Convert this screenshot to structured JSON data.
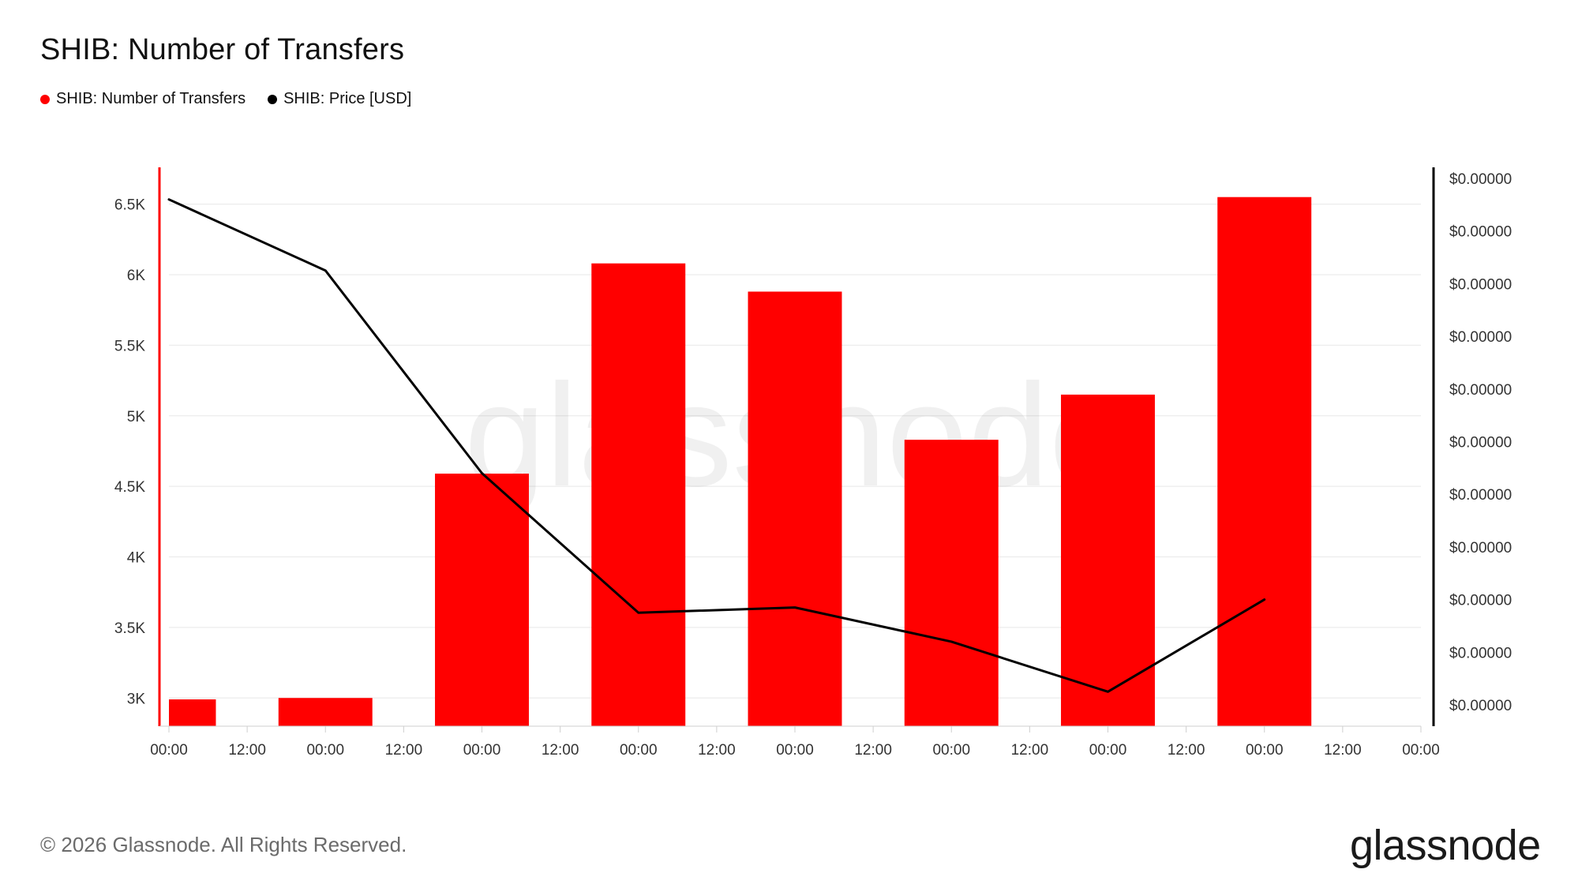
{
  "header": {
    "title": "SHIB: Number of Transfers"
  },
  "legend": {
    "items": [
      {
        "label": "SHIB: Number of Transfers",
        "color": "#ff0000",
        "icon": "circle-dot-icon"
      },
      {
        "label": "SHIB: Price [USD]",
        "color": "#000000",
        "icon": "circle-dot-icon"
      }
    ]
  },
  "watermark": "glassnode",
  "footer": {
    "copyright": "© 2026 Glassnode. All Rights Reserved.",
    "logo": "glassnode"
  },
  "chart_data": {
    "type": "bar",
    "title": "SHIB: Number of Transfers",
    "x_tick_labels": [
      "00:00",
      "12:00",
      "00:00",
      "12:00",
      "00:00",
      "12:00",
      "00:00",
      "12:00",
      "00:00",
      "12:00",
      "00:00",
      "12:00",
      "00:00",
      "12:00",
      "00:00",
      "12:00",
      "00:00"
    ],
    "x_range_days": [
      0,
      8
    ],
    "left_axis": {
      "ylim": [
        2800,
        6800
      ],
      "ticks": [
        3000,
        3500,
        4000,
        4500,
        5000,
        5500,
        6000,
        6500
      ],
      "tick_labels": [
        "3K",
        "3.5K",
        "4K",
        "4.5K",
        "5K",
        "5.5K",
        "6K",
        "6.5K"
      ],
      "color": "#ff0000"
    },
    "right_axis": {
      "ticks": [
        0,
        1,
        2,
        3,
        4,
        5,
        6,
        7,
        8,
        9,
        10
      ],
      "tick_labels": [
        "$0.00000",
        "$0.00000",
        "$0.00000",
        "$0.00000",
        "$0.00000",
        "$0.00000",
        "$0.00000",
        "$0.00000",
        "$0.00000",
        "$0.00000",
        "$0.00000"
      ],
      "color": "#000000"
    },
    "series": [
      {
        "name": "SHIB: Number of Transfers",
        "kind": "bar",
        "axis": "left",
        "color": "#ff0000",
        "points": [
          {
            "x": 0.15,
            "y": 2990,
            "w": 0.3
          },
          {
            "x": 1.0,
            "y": 3000
          },
          {
            "x": 2.0,
            "y": 4590
          },
          {
            "x": 3.0,
            "y": 6080
          },
          {
            "x": 4.0,
            "y": 5880
          },
          {
            "x": 5.0,
            "y": 4830
          },
          {
            "x": 6.0,
            "y": 5150
          },
          {
            "x": 7.0,
            "y": 6550
          }
        ],
        "bar_width_days": 0.6
      },
      {
        "name": "SHIB: Price [USD]",
        "kind": "line",
        "axis": "right",
        "color": "#000000",
        "points": [
          {
            "x": 0,
            "y": 9.6
          },
          {
            "x": 1,
            "y": 8.25
          },
          {
            "x": 2,
            "y": 4.4
          },
          {
            "x": 3,
            "y": 1.75
          },
          {
            "x": 4,
            "y": 1.85
          },
          {
            "x": 5,
            "y": 1.2
          },
          {
            "x": 6,
            "y": 0.25
          },
          {
            "x": 7,
            "y": 2.0
          }
        ]
      }
    ],
    "grid": true,
    "legend_position": "top-left"
  }
}
